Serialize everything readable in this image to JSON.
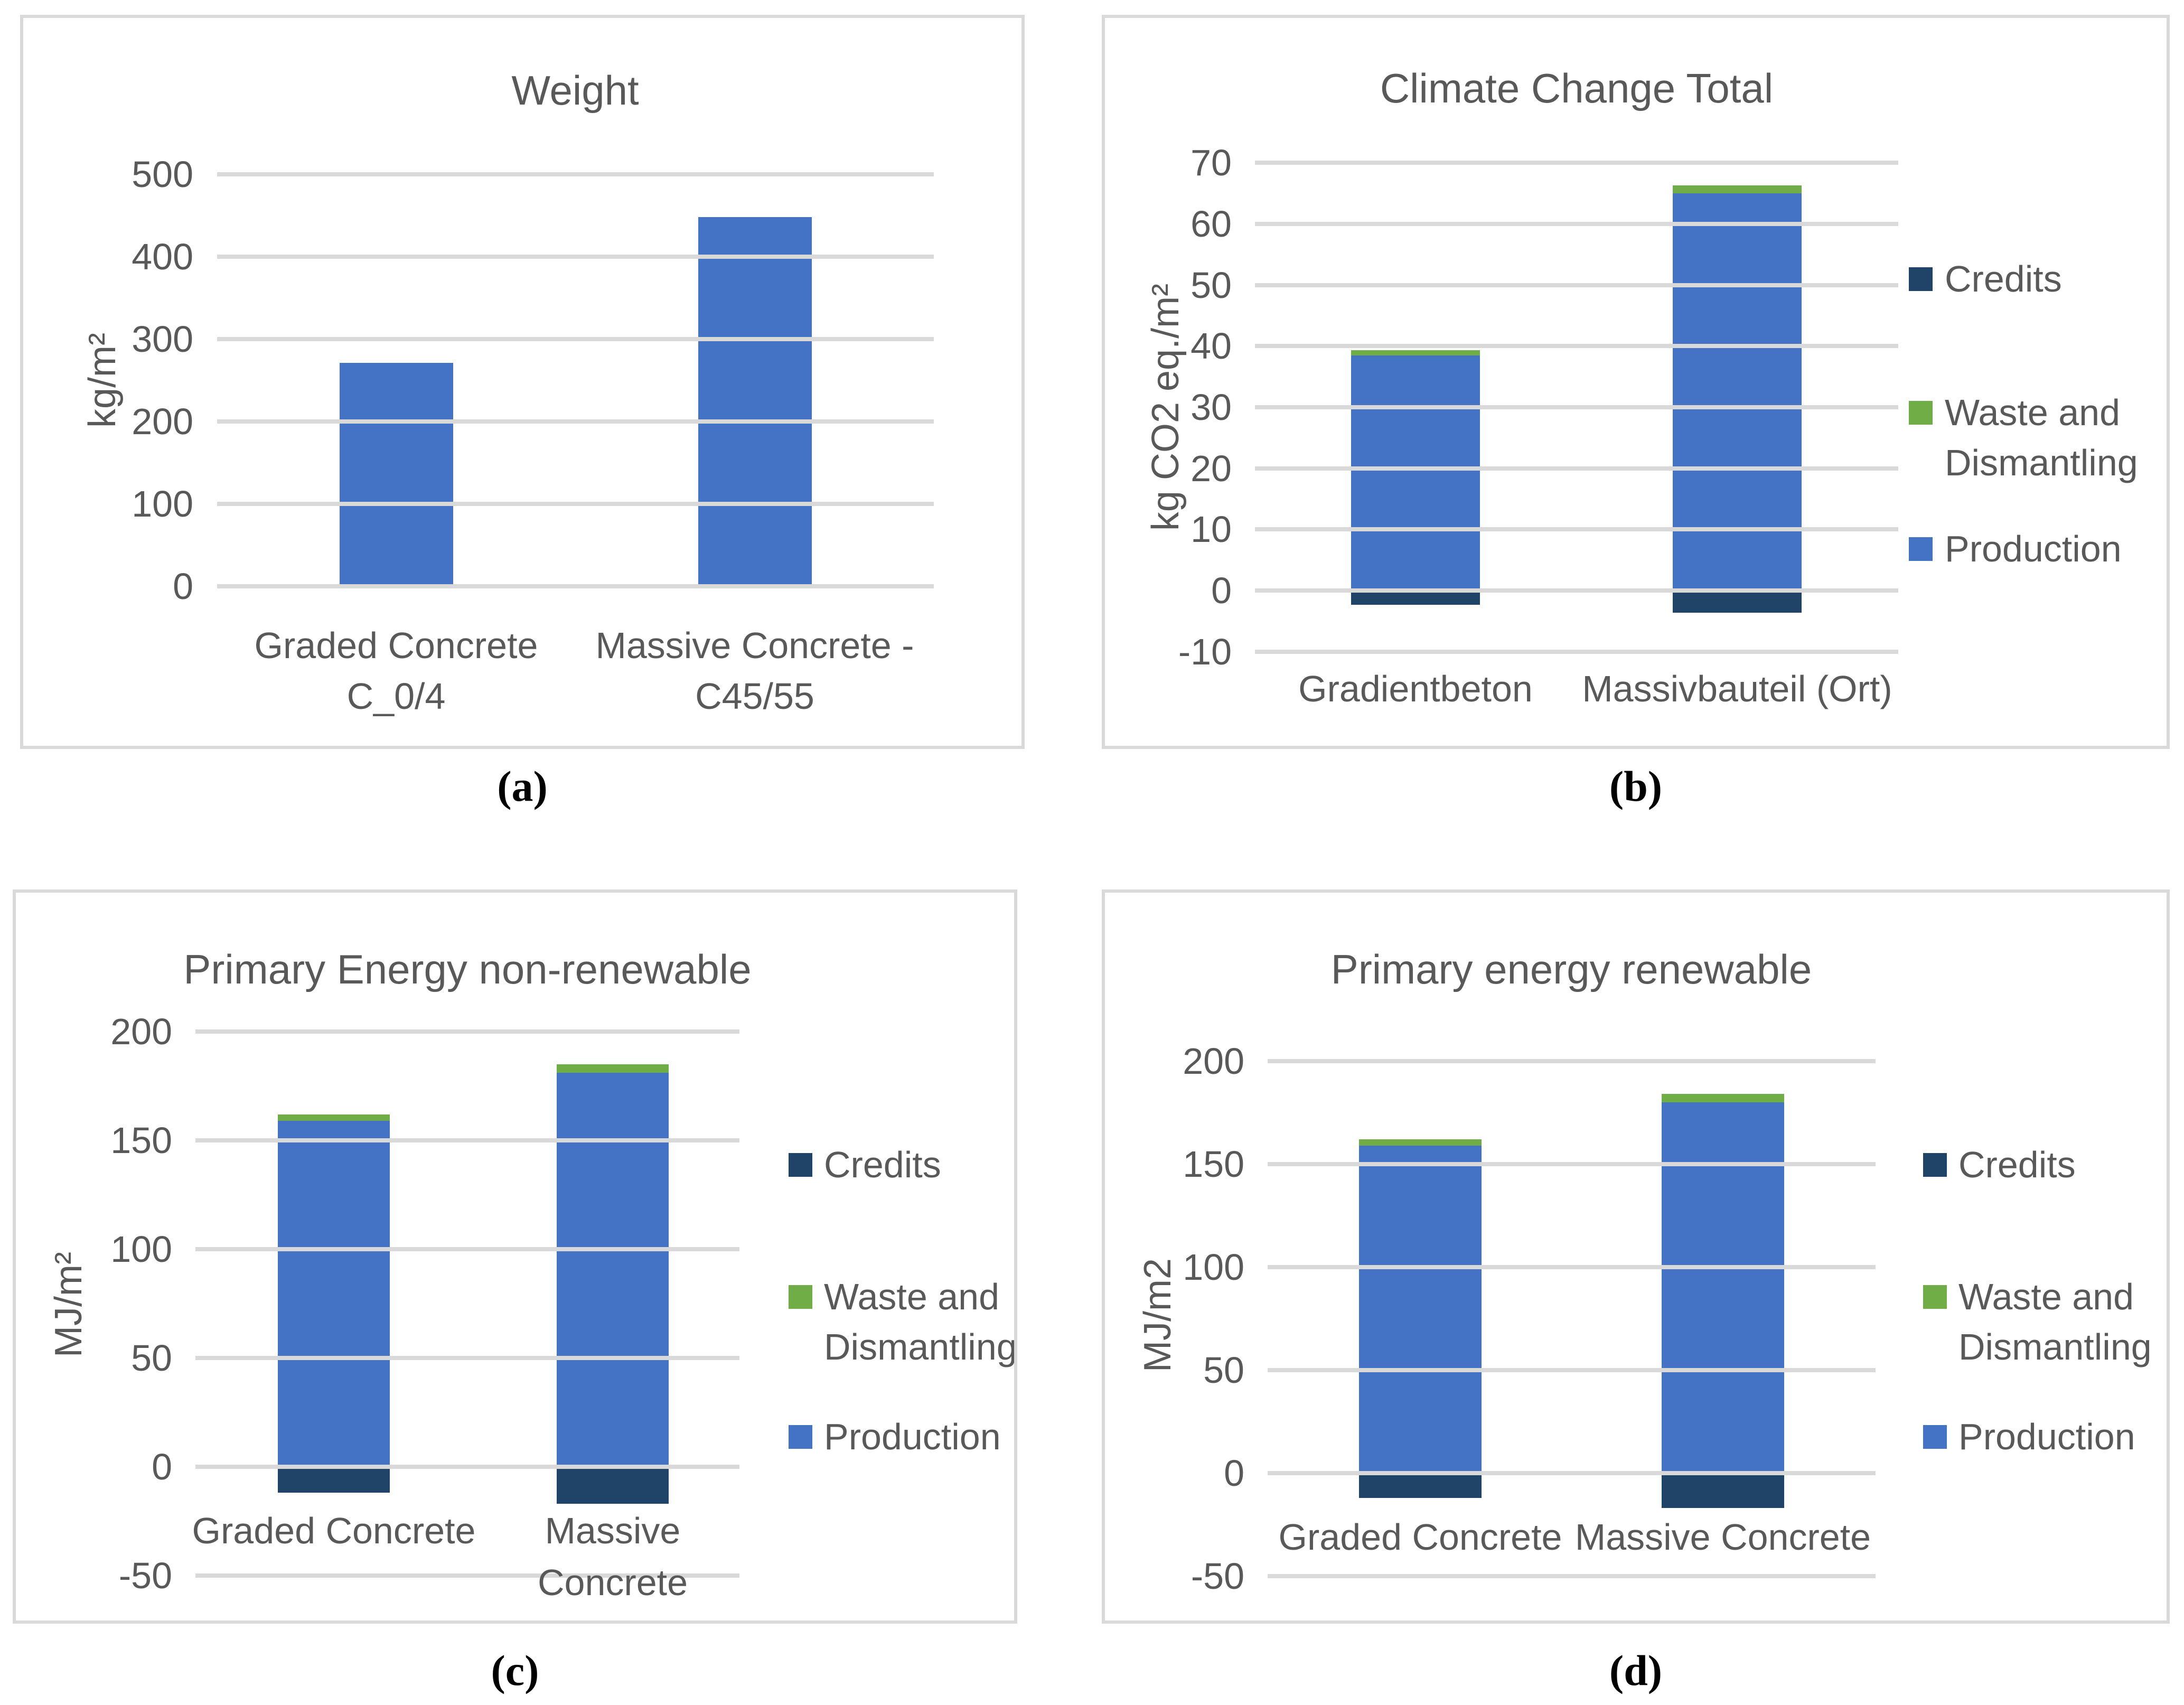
{
  "figure": {
    "background": "#FFFFFF",
    "text_color": "#595959",
    "grid_color": "#D9D9D9",
    "panel_border_color": "#D9D9D9",
    "caption_color": "#000000"
  },
  "series_colors": {
    "Production": "#4472C4",
    "Waste and Dismantling": "#70AD47",
    "Credits": "#1F4468"
  },
  "chart_data": [
    {
      "key": "weight",
      "type": "bar",
      "caption": "(a)",
      "title": "Weight",
      "ylabel": "kg/m²",
      "xlabel": "",
      "ylim": [
        0,
        500
      ],
      "grid": true,
      "yticks": [
        500,
        400,
        300,
        200,
        100,
        0
      ],
      "categories": [
        {
          "lines": [
            "Graded Concrete",
            "C_0/4"
          ]
        },
        {
          "lines": [
            "Massive Concrete -",
            "C45/55"
          ]
        }
      ],
      "values": [
        271,
        448
      ],
      "bar_color": "#4472C4",
      "legend": []
    },
    {
      "key": "climate-change-total",
      "type": "bar",
      "subtype": "stacked",
      "caption": "(b)",
      "title": "Climate Change Total",
      "ylabel": "kg CO2 eq./m²",
      "xlabel": "",
      "ylim": [
        -10,
        70
      ],
      "grid": true,
      "legend_position": "right",
      "yticks": [
        70,
        60,
        50,
        40,
        30,
        20,
        10,
        0,
        -10
      ],
      "categories": [
        {
          "lines": [
            "Gradientbeton"
          ]
        },
        {
          "lines": [
            "Massivbauteil (Ort)"
          ]
        }
      ],
      "series": [
        {
          "name": "Credits",
          "values": [
            -2.3,
            -3.6
          ]
        },
        {
          "name": "Waste and Dismantling",
          "values": [
            0.9,
            1.3
          ]
        },
        {
          "name": "Production",
          "values": [
            38.5,
            65.0
          ]
        }
      ],
      "legend": [
        {
          "name": "Credits",
          "lines": [
            "Credits"
          ]
        },
        {
          "name": "Waste and Dismantling",
          "lines": [
            "Waste and",
            "Dismantling"
          ]
        },
        {
          "name": "Production",
          "lines": [
            "Production"
          ]
        }
      ]
    },
    {
      "key": "primary-energy-non-renewable",
      "type": "bar",
      "subtype": "stacked",
      "caption": "(c)",
      "title": "Primary Energy non-renewable",
      "ylabel": "MJ/m²",
      "xlabel": "",
      "ylim": [
        -50,
        200
      ],
      "grid": true,
      "legend_position": "right",
      "yticks": [
        200,
        150,
        100,
        50,
        0,
        -50
      ],
      "categories": [
        {
          "lines": [
            "Graded Concrete"
          ]
        },
        {
          "lines": [
            "Massive",
            "Concrete"
          ]
        }
      ],
      "series": [
        {
          "name": "Credits",
          "values": [
            -12,
            -17
          ]
        },
        {
          "name": "Waste and Dismantling",
          "values": [
            3,
            4
          ]
        },
        {
          "name": "Production",
          "values": [
            159,
            181
          ]
        }
      ],
      "legend": [
        {
          "name": "Credits",
          "lines": [
            "Credits"
          ]
        },
        {
          "name": "Waste and Dismantling",
          "lines": [
            "Waste and",
            "Dismantling"
          ]
        },
        {
          "name": "Production",
          "lines": [
            "Production"
          ]
        }
      ]
    },
    {
      "key": "primary-energy-renewable",
      "type": "bar",
      "subtype": "stacked",
      "caption": "(d)",
      "title": "Primary energy renewable",
      "ylabel": "MJ/m2",
      "xlabel": "",
      "ylim": [
        -50,
        200
      ],
      "grid": true,
      "legend_position": "right",
      "yticks": [
        200,
        150,
        100,
        50,
        0,
        -50
      ],
      "categories": [
        {
          "lines": [
            "Graded Concrete"
          ]
        },
        {
          "lines": [
            "Massive Concrete"
          ]
        }
      ],
      "series": [
        {
          "name": "Credits",
          "values": [
            -12,
            -17
          ]
        },
        {
          "name": "Waste and Dismantling",
          "values": [
            3,
            4
          ]
        },
        {
          "name": "Production",
          "values": [
            159,
            180
          ]
        }
      ],
      "legend": [
        {
          "name": "Credits",
          "lines": [
            "Credits"
          ]
        },
        {
          "name": "Waste and Dismantling",
          "lines": [
            "Waste and",
            "Dismantling"
          ]
        },
        {
          "name": "Production",
          "lines": [
            "Production"
          ]
        }
      ]
    }
  ]
}
